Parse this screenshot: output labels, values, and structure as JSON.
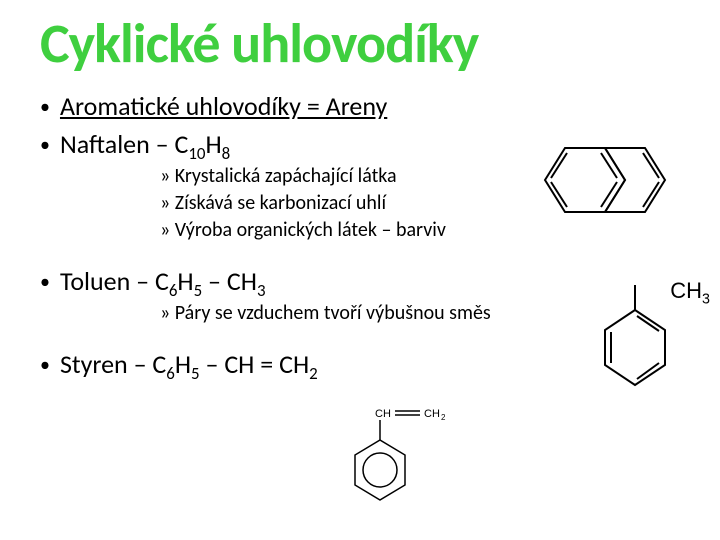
{
  "title": {
    "text": "Cyklické uhlovodíky",
    "color": "#3fcf3f"
  },
  "items": [
    {
      "type": "l1",
      "text_html": "Aromatické uhlovodíky = Areny",
      "underline": true
    },
    {
      "type": "l1",
      "text_html": "Naftalen – C<sub>10</sub>H<sub>8</sub>"
    },
    {
      "type": "l3",
      "text": "» Krystalická zapáchající látka"
    },
    {
      "type": "l3",
      "text": "» Získává se karbonizací uhlí"
    },
    {
      "type": "l3",
      "text": "» Výroba organických látek – barviv"
    },
    {
      "type": "spacer"
    },
    {
      "type": "l1",
      "text_html": "Toluen – C<sub>6</sub>H<sub>5</sub> – CH<sub>3</sub>"
    },
    {
      "type": "l3",
      "text": "» Páry se vzduchem tvoří výbušnou směs"
    },
    {
      "type": "spacer"
    },
    {
      "type": "l1",
      "text_html": "Styren – C<sub>6</sub>H<sub>5</sub> – CH = CH<sub>2</sub>"
    }
  ],
  "ch3_label": "CH",
  "ch3_sub": "3",
  "structures": {
    "naphthalene": {
      "stroke": "#000000",
      "stroke_width": 2
    },
    "toluene": {
      "stroke": "#000000",
      "stroke_width": 2
    },
    "styrene": {
      "stroke": "#000000",
      "stroke_width": 1.5
    }
  }
}
